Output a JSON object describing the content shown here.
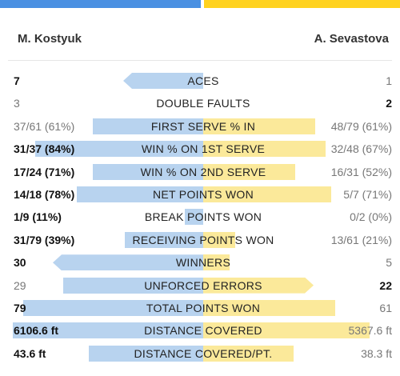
{
  "colors": {
    "left_accent": "#4a90e2",
    "right_accent": "#ffd21f",
    "left_bar": "#b8d3ef",
    "right_bar": "#fbe99a"
  },
  "players": {
    "left": "M. Kostyuk",
    "right": "A. Sevastova"
  },
  "stats": [
    {
      "label": "ACES",
      "left": "7",
      "right": "1",
      "winner": "left",
      "left_pct": 0.4,
      "right_pct": 0.0,
      "arrow": "left"
    },
    {
      "label": "DOUBLE FAULTS",
      "left": "3",
      "right": "2",
      "winner": "right",
      "left_pct": 0.0,
      "right_pct": 0.0,
      "arrow": "none"
    },
    {
      "label": "FIRST SERVE % IN",
      "left": "37/61 (61%)",
      "right": "48/79 (61%)",
      "winner": "none",
      "left_pct": 0.55,
      "right_pct": 0.56,
      "arrow": "none"
    },
    {
      "label": "WIN % ON 1ST SERVE",
      "left": "31/37 (84%)",
      "right": "32/48 (67%)",
      "winner": "left",
      "left_pct": 0.84,
      "right_pct": 0.61,
      "arrow": "none"
    },
    {
      "label": "WIN % ON 2ND SERVE",
      "left": "17/24 (71%)",
      "right": "16/31 (52%)",
      "winner": "left",
      "left_pct": 0.55,
      "right_pct": 0.46,
      "arrow": "none"
    },
    {
      "label": "NET POINTS WON",
      "left": "14/18 (78%)",
      "right": "5/7 (71%)",
      "winner": "left",
      "left_pct": 0.63,
      "right_pct": 0.64,
      "arrow": "none"
    },
    {
      "label": "BREAK POINTS WON",
      "left": "1/9 (11%)",
      "right": "0/2 (0%)",
      "winner": "left",
      "left_pct": 0.09,
      "right_pct": 0.0,
      "arrow": "none"
    },
    {
      "label": "RECEIVING POINTS WON",
      "left": "31/79 (39%)",
      "right": "13/61 (21%)",
      "winner": "left",
      "left_pct": 0.39,
      "right_pct": 0.16,
      "arrow": "none"
    },
    {
      "label": "WINNERS",
      "left": "30",
      "right": "5",
      "winner": "left",
      "left_pct": 0.75,
      "right_pct": 0.13,
      "arrow": "left"
    },
    {
      "label": "UNFORCED ERRORS",
      "left": "29",
      "right": "22",
      "winner": "right",
      "left_pct": 0.7,
      "right_pct": 0.55,
      "arrow": "right"
    },
    {
      "label": "TOTAL POINTS WON",
      "left": "79",
      "right": "61",
      "winner": "left",
      "left_pct": 0.9,
      "right_pct": 0.66,
      "arrow": "none"
    },
    {
      "label": "DISTANCE COVERED",
      "left": "6106.6 ft",
      "right": "5367.6 ft",
      "winner": "left",
      "left_pct": 0.95,
      "right_pct": 0.83,
      "arrow": "none"
    },
    {
      "label": "DISTANCE COVERED/PT.",
      "left": "43.6 ft",
      "right": "38.3 ft",
      "winner": "left",
      "left_pct": 0.57,
      "right_pct": 0.45,
      "arrow": "none"
    }
  ]
}
